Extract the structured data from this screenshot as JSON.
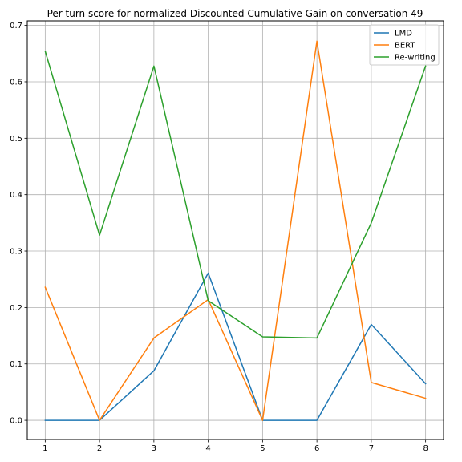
{
  "chart_data": {
    "type": "line",
    "title": "Per turn score for normalized Discounted Cumulative Gain on conversation 49",
    "xlabel": "",
    "ylabel": "",
    "x": [
      1,
      2,
      3,
      4,
      5,
      6,
      7,
      8
    ],
    "xticks": [
      "1",
      "2",
      "3",
      "4",
      "5",
      "6",
      "7",
      "8"
    ],
    "yticks": [
      "0.0",
      "0.1",
      "0.2",
      "0.3",
      "0.4",
      "0.5",
      "0.6",
      "0.7"
    ],
    "xlim": [
      0.67,
      8.33
    ],
    "ylim": [
      -0.034,
      0.708
    ],
    "grid": true,
    "legend_position": "top-right",
    "series": [
      {
        "name": "LMD",
        "color": "#1f77b4",
        "values": [
          0.0,
          0.0,
          0.088,
          0.261,
          0.0,
          0.0,
          0.17,
          0.065
        ]
      },
      {
        "name": "BERT",
        "color": "#ff7f0e",
        "values": [
          0.236,
          0.0,
          0.146,
          0.214,
          0.0,
          0.672,
          0.067,
          0.039
        ]
      },
      {
        "name": "Re-writing",
        "color": "#2ca02c",
        "values": [
          0.654,
          0.328,
          0.628,
          0.212,
          0.148,
          0.146,
          0.35,
          0.628
        ]
      }
    ]
  }
}
